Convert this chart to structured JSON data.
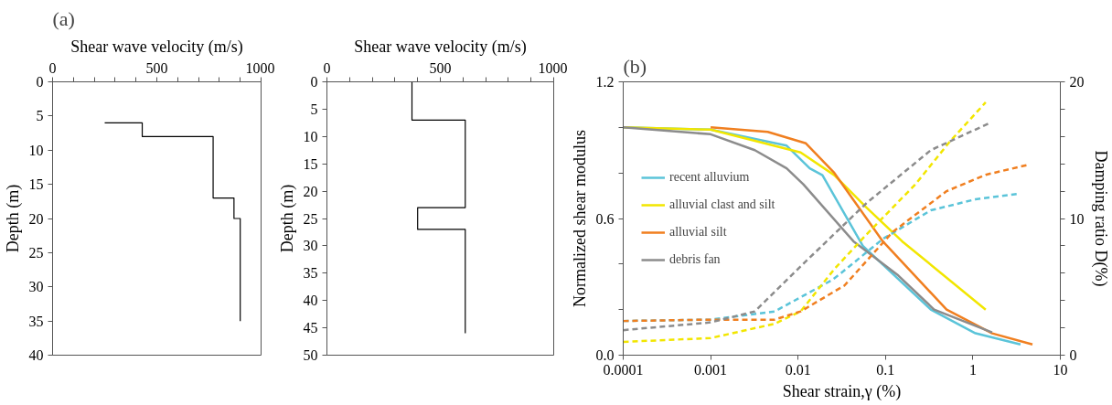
{
  "chart_data": [
    {
      "type": "line",
      "annotations": [
        "(a)"
      ],
      "xlabel": "Shear wave velocity (m/s)",
      "ylabel": "Depth (m)",
      "series": [
        {
          "color": "#000000",
          "x": [
            250,
            430,
            430,
            770,
            770,
            870,
            870,
            900,
            900
          ],
          "values": [
            6,
            6,
            8,
            8,
            17,
            17,
            20,
            20,
            35
          ]
        }
      ],
      "xlim": [
        0,
        1000
      ],
      "ylim": [
        40,
        0
      ],
      "xticks": [
        0,
        {
          "value": 100,
          "label": null
        },
        {
          "value": 200,
          "label": null
        },
        {
          "value": 300,
          "label": null
        },
        {
          "value": 400,
          "label": null
        },
        500,
        {
          "value": 600,
          "label": null
        },
        {
          "value": 700,
          "label": null
        },
        {
          "value": 800,
          "label": null
        },
        {
          "value": 900,
          "label": null
        },
        1000
      ],
      "yticks": [
        0,
        5,
        10,
        15,
        20,
        25,
        30,
        35,
        40
      ],
      "grid": false,
      "legend": false,
      "line_style": "solid"
    },
    {
      "type": "line",
      "xlabel": "Shear wave velocity (m/s)",
      "ylabel": "Depth (m)",
      "series": [
        {
          "color": "#000000",
          "x": [
            375,
            375,
            610,
            610,
            400,
            400,
            610,
            610
          ],
          "values": [
            0,
            7,
            7,
            23,
            23,
            27,
            27,
            46
          ]
        }
      ],
      "xlim": [
        0,
        1000
      ],
      "ylim": [
        50,
        0
      ],
      "xticks": [
        0,
        {
          "value": 100,
          "label": null
        },
        {
          "value": 200,
          "label": null
        },
        {
          "value": 300,
          "label": null
        },
        {
          "value": 400,
          "label": null
        },
        500,
        {
          "value": 600,
          "label": null
        },
        {
          "value": 700,
          "label": null
        },
        {
          "value": 800,
          "label": null
        },
        {
          "value": 900,
          "label": null
        },
        1000
      ],
      "yticks": [
        0,
        5,
        10,
        15,
        20,
        25,
        30,
        35,
        40,
        45,
        50
      ],
      "grid": false,
      "legend": false,
      "line_style": "solid"
    },
    {
      "type": "line",
      "annotations": [
        "(b)"
      ],
      "xlabel": "Shear strain,γ (%)",
      "ylabel": "Normalized shear modulus",
      "y2label": "Damping ratio D(%)",
      "log": "x",
      "series": [
        {
          "name": "recent alluvium",
          "color": "#5bc4d9",
          "x": [
            0.0001,
            0.001,
            0.0074,
            0.0136,
            0.019,
            0.055,
            0.33,
            1.07,
            3.5
          ],
          "values": [
            1.0,
            0.99,
            0.92,
            0.82,
            0.79,
            0.48,
            0.2,
            0.096,
            0.047
          ]
        },
        {
          "name": "alluvial clast and silt",
          "color": "#f2e600",
          "x": [
            0.0001,
            0.001,
            0.0107,
            0.026,
            0.06,
            0.155,
            1.4
          ],
          "values": [
            1.0,
            0.99,
            0.89,
            0.79,
            0.65,
            0.5,
            0.2
          ]
        },
        {
          "name": "alluvial silt",
          "color": "#f07f20",
          "x": [
            0.001,
            0.0045,
            0.0123,
            0.026,
            0.093,
            0.5,
            1.66,
            4.8
          ],
          "values": [
            1.0,
            0.98,
            0.93,
            0.8,
            0.5,
            0.2,
            0.096,
            0.047
          ]
        },
        {
          "name": "debris fan",
          "color": "#8c8c8c",
          "x": [
            0.0001,
            0.001,
            0.0032,
            0.0074,
            0.0115,
            0.043,
            0.14,
            0.36,
            1.66
          ],
          "values": [
            1.0,
            0.97,
            0.9,
            0.82,
            0.75,
            0.5,
            0.35,
            0.2,
            0.1
          ]
        },
        {
          "color": "#5bc4d9",
          "axis": "y2",
          "line_style": "dashed",
          "x": [
            0.0001,
            0.001,
            0.0054,
            0.0245,
            0.031,
            0.093,
            0.33,
            1.07,
            3.2
          ],
          "values": [
            2.5,
            2.6,
            3.2,
            5.5,
            6.0,
            8.5,
            10.6,
            11.4,
            11.8
          ]
        },
        {
          "color": "#f2e600",
          "axis": "y2",
          "line_style": "dashed",
          "x": [
            0.0001,
            0.001,
            0.0054,
            0.0107,
            0.026,
            0.06,
            0.22,
            0.54,
            1.4
          ],
          "values": [
            0.97,
            1.25,
            2.3,
            3.2,
            6.3,
            8.8,
            12.5,
            15.6,
            18.5
          ]
        },
        {
          "color": "#f07f20",
          "axis": "y2",
          "line_style": "dashed",
          "x": [
            0.0001,
            0.001,
            0.0054,
            0.0107,
            0.034,
            0.12,
            0.5,
            1.4,
            4.1
          ],
          "values": [
            2.5,
            2.6,
            2.6,
            3.2,
            5.1,
            9.0,
            12.0,
            13.2,
            13.9
          ]
        },
        {
          "color": "#8c8c8c",
          "axis": "y2",
          "line_style": "dashed",
          "x": [
            0.0001,
            0.001,
            0.0032,
            0.0107,
            0.06,
            0.33,
            1.57
          ],
          "values": [
            1.83,
            2.4,
            3.2,
            6.5,
            11.1,
            15.0,
            17.0
          ]
        }
      ],
      "xlim": [
        0.0001,
        10
      ],
      "ylim": [
        0,
        1.2
      ],
      "y2lim": [
        0,
        20
      ],
      "xticks": [
        0.0001,
        0.001,
        0.01,
        0.1,
        1,
        10
      ],
      "yticks": [
        {
          "value": 0,
          "label": "0.0"
        },
        {
          "value": 0.2,
          "label": null
        },
        {
          "value": 0.4,
          "label": null
        },
        0.6,
        {
          "value": 0.8,
          "label": null
        },
        {
          "value": 1.0,
          "label": null
        },
        1.2
      ],
      "y2ticks": [
        0,
        {
          "value": 2,
          "label": null
        },
        {
          "value": 4,
          "label": null
        },
        {
          "value": 6,
          "label": null
        },
        {
          "value": 8,
          "label": null
        },
        10,
        {
          "value": 12,
          "label": null
        },
        {
          "value": 14,
          "label": null
        },
        {
          "value": 16,
          "label": null
        },
        {
          "value": 18,
          "label": null
        },
        20
      ],
      "grid": false,
      "legend": "left",
      "line_style": "solid"
    }
  ]
}
